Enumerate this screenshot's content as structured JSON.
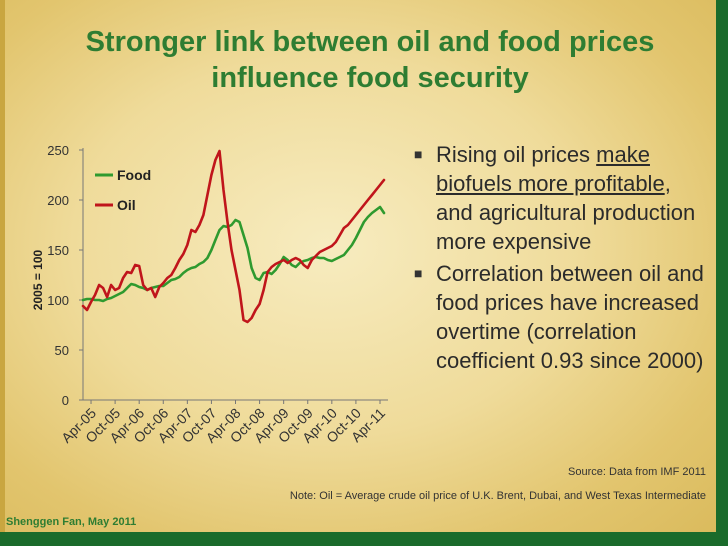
{
  "slide": {
    "title_line1": "Stronger link between oil and food prices",
    "title_line2": "influence food security",
    "bullets": [
      {
        "pre": "Rising oil prices ",
        "underlined": "make biofuels more profitable",
        "post": ", and agricultural production more expensive"
      },
      {
        "text": "Correlation between oil and food prices have increased overtime (correlation coefficient 0.93 since 2000)"
      }
    ],
    "source": "Source: Data from IMF 2011",
    "note": "Note: Oil = Average crude oil price of U.K. Brent, Dubai, and West Texas Intermediate",
    "author": "Shenggen Fan, May 2011",
    "bullet_glyph": "square-bullet-icon"
  },
  "colors": {
    "food": "#2f9a2f",
    "oil": "#c0151b",
    "title": "#2e7d32",
    "green_bar": "#1a6b2b"
  },
  "chart_data": {
    "type": "line",
    "title": "",
    "xlabel": "",
    "ylabel": "2005 = 100",
    "ylim": [
      0,
      250
    ],
    "yticks": [
      0,
      50,
      100,
      150,
      200,
      250
    ],
    "x_tick_labels": [
      "Apr-05",
      "Oct-05",
      "Apr-06",
      "Oct-06",
      "Apr-07",
      "Oct-07",
      "Apr-08",
      "Oct-08",
      "Apr-09",
      "Oct-09",
      "Apr-10",
      "Oct-10",
      "Apr-11"
    ],
    "x_start": "Feb-05",
    "x_end": "Apr-11",
    "legend": "top-left",
    "grid": false,
    "series": [
      {
        "name": "Food",
        "values": [
          100,
          101,
          101,
          100,
          100,
          99,
          101,
          102,
          104,
          106,
          108,
          112,
          116,
          115,
          113,
          112,
          110,
          112,
          113,
          114,
          114,
          117,
          120,
          121,
          123,
          127,
          130,
          132,
          133,
          136,
          138,
          142,
          150,
          160,
          170,
          174,
          173,
          175,
          180,
          178,
          165,
          152,
          132,
          122,
          120,
          127,
          128,
          126,
          130,
          136,
          143,
          140,
          135,
          133,
          137,
          139,
          140,
          142,
          143,
          142,
          142,
          140,
          139,
          141,
          143,
          145,
          150,
          155,
          162,
          170,
          178,
          183,
          187,
          190,
          193,
          187
        ]
      },
      {
        "name": "Oil",
        "values": [
          94,
          90,
          98,
          105,
          115,
          112,
          103,
          115,
          110,
          112,
          122,
          128,
          127,
          135,
          134,
          115,
          110,
          112,
          103,
          113,
          117,
          122,
          125,
          132,
          140,
          146,
          155,
          170,
          168,
          175,
          185,
          205,
          225,
          240,
          249,
          210,
          178,
          150,
          130,
          110,
          80,
          78,
          82,
          90,
          96,
          110,
          128,
          133,
          136,
          138,
          140,
          137,
          140,
          142,
          140,
          135,
          132,
          140,
          144,
          148,
          150,
          152,
          154,
          158,
          165,
          172,
          175,
          180,
          185,
          190,
          195,
          200,
          205,
          210,
          215,
          220
        ]
      }
    ]
  }
}
